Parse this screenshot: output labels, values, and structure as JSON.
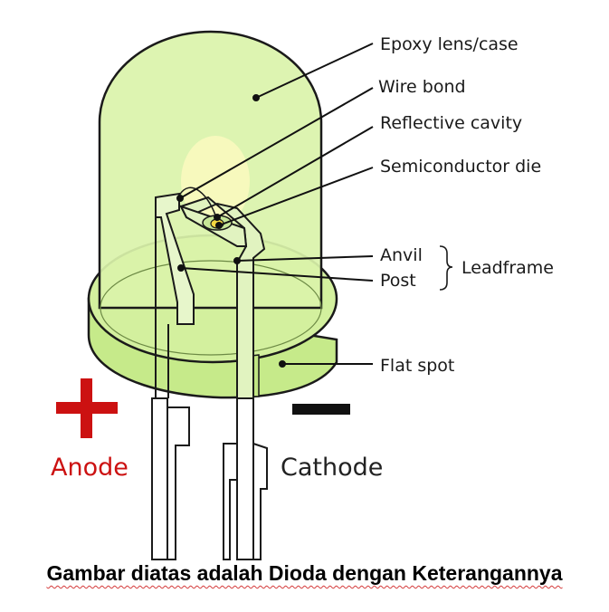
{
  "labels": {
    "epoxy": "Epoxy lens/case",
    "wire_bond": "Wire bond",
    "reflective_cavity": "Reflective cavity",
    "semiconductor_die": "Semiconductor die",
    "anvil": "Anvil",
    "post": "Post",
    "leadframe": "Leadframe",
    "flat_spot": "Flat spot",
    "anode": "Anode",
    "cathode": "Cathode"
  },
  "caption": "Gambar diatas adalah Dioda dengan Keterangannya",
  "colors": {
    "lens_fill": "#d8f2a8",
    "lens_stroke": "#1a1a1a",
    "anode": "#cc1111",
    "cathode": "#111111",
    "die": "#f2d640"
  }
}
